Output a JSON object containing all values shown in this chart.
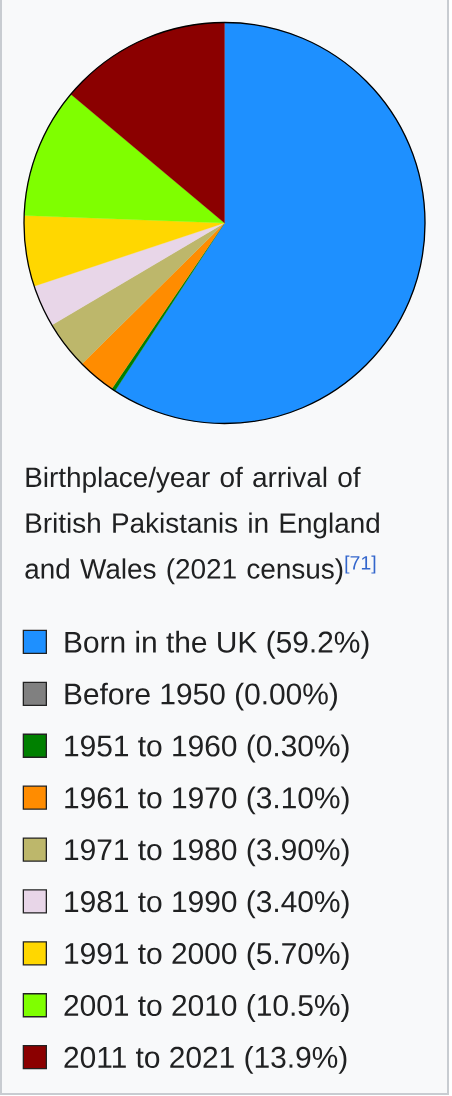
{
  "chart_data": {
    "type": "pie",
    "title": "Birthplace/year of arrival of British Pakistanis in England and Wales (2021 census)$^{[71]}$",
    "categories": [
      "Born in the UK",
      "Before 1950",
      "1951 to 1960",
      "1961 to 1970",
      "1971 to 1980",
      "1981 to 1990",
      "1991 to 2000",
      "2001 to 2010",
      "2011 to 2021"
    ],
    "values": [
      59.2,
      0,
      0.3,
      3.1,
      3.9,
      3.4,
      5.7,
      10.5,
      13.9
    ],
    "value_labels": [
      "(59.2%)",
      "(0.00%)",
      "(0.30%)",
      "(3.10%)",
      "(3.90%)",
      "(3.40%)",
      "(5.70%)",
      "(10.5%)",
      "(13.9%)"
    ],
    "colors": [
      "#1e90ff",
      "#808080",
      "#008000",
      "#ff8c00",
      "#bdb76b",
      "#e8d6e8",
      "#ffd700",
      "#7fff00",
      "#8b0000"
    ],
    "legend": "bottom"
  }
}
